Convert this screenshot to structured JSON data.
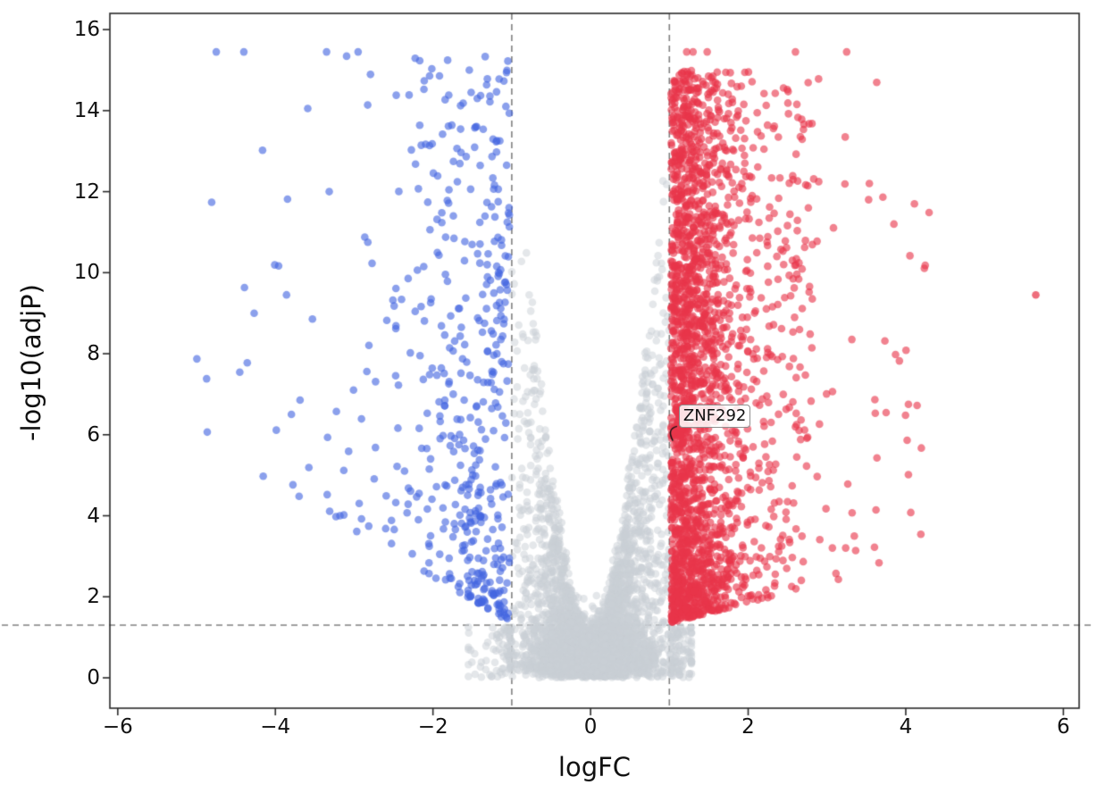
{
  "chart_data": {
    "type": "scatter",
    "subtype": "volcano-plot",
    "title": "",
    "xlabel": "logFC",
    "ylabel": "-log10(adjP)",
    "xlim": [
      -6.1,
      6.2
    ],
    "ylim": [
      -0.75,
      16.4
    ],
    "x_ticks": [
      {
        "v": -6,
        "label": "−6"
      },
      {
        "v": -4,
        "label": "−4"
      },
      {
        "v": -2,
        "label": "−2"
      },
      {
        "v": 0,
        "label": "0"
      },
      {
        "v": 2,
        "label": "2"
      },
      {
        "v": 4,
        "label": "4"
      },
      {
        "v": 6,
        "label": "6"
      }
    ],
    "y_ticks": [
      {
        "v": 0,
        "label": "0"
      },
      {
        "v": 2,
        "label": "2"
      },
      {
        "v": 4,
        "label": "4"
      },
      {
        "v": 6,
        "label": "6"
      },
      {
        "v": 8,
        "label": "8"
      },
      {
        "v": 10,
        "label": "10"
      },
      {
        "v": 12,
        "label": "12"
      },
      {
        "v": 14,
        "label": "14"
      },
      {
        "v": 16,
        "label": "16"
      }
    ],
    "grid": false,
    "legend": "none",
    "background": "#ffffff",
    "frame_color": "#2a2a2a",
    "thresholds": {
      "logfc_lines": [
        -1,
        1
      ],
      "pvalue_line": 1.3,
      "line_color": "#808080",
      "line_dash": [
        7,
        5
      ]
    },
    "series": [
      {
        "name": "down",
        "meaning": "down-regulated significant",
        "color": "#4466e0",
        "alpha": 0.62,
        "count": 480,
        "x_range": [
          -5.6,
          -1.0
        ],
        "y_range": [
          1.3,
          15.5
        ]
      },
      {
        "name": "ns",
        "meaning": "not significant",
        "color": "#c9cfd6",
        "alpha": 0.5,
        "count": 3800,
        "x_range": [
          -1.55,
          1.28
        ],
        "y_range": [
          0,
          15.2
        ]
      },
      {
        "name": "up",
        "meaning": "up-regulated significant",
        "color": "#e8364a",
        "alpha": 0.62,
        "count": 2300,
        "x_range": [
          1.0,
          4.35
        ],
        "y_range": [
          1.3,
          15.5
        ]
      }
    ],
    "capped_points": {
      "y": 15.45,
      "down_x": [
        -4.75,
        -4.4,
        -3.35,
        -2.95
      ],
      "up_x": [
        1.22,
        1.3,
        1.48,
        2.6,
        3.25
      ]
    },
    "outliers": [
      {
        "x": 5.65,
        "y": 9.45,
        "group": "up"
      }
    ],
    "annotation": {
      "label": "ZNF292",
      "point": [
        1.0,
        5.85
      ],
      "label_pos": [
        1.12,
        6.45
      ]
    },
    "marker": {
      "radius": 4.3
    },
    "seed": 42
  }
}
